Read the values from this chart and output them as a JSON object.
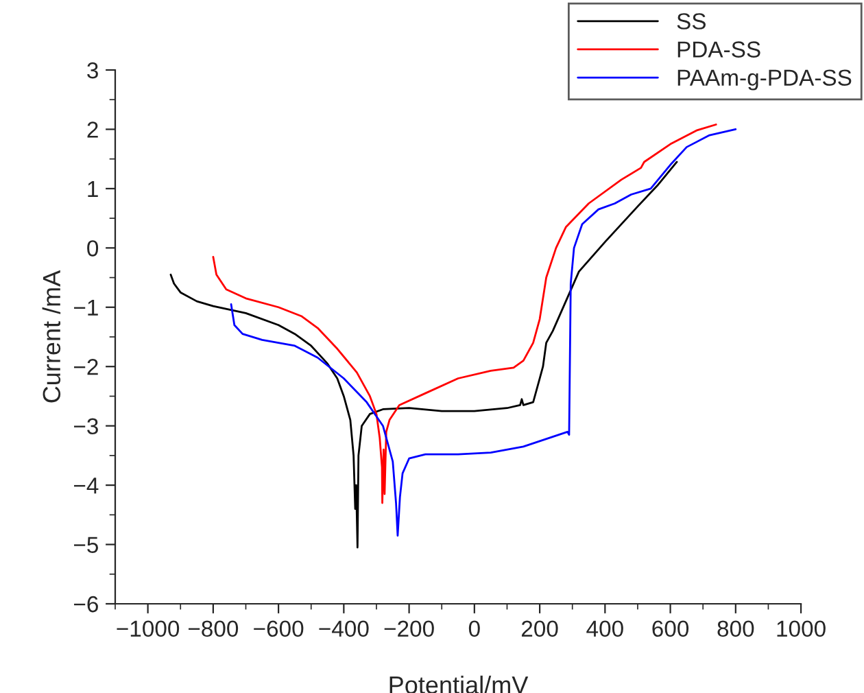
{
  "chart_data": {
    "type": "line",
    "xlabel": "Potential/mV",
    "ylabel": "Current /mA",
    "xlim": [
      -1100,
      1000
    ],
    "xticks": [
      {
        "value": -1000,
        "label": "−1000"
      },
      {
        "value": -800,
        "label": "−800"
      },
      {
        "value": -600,
        "label": "−600"
      },
      {
        "value": -400,
        "label": "−400"
      },
      {
        "value": -200,
        "label": "−200"
      },
      0,
      200,
      400,
      600,
      800,
      1000
    ],
    "ylim": [
      -6,
      3
    ],
    "yticks": [
      {
        "value": -6,
        "label": "−6"
      },
      {
        "value": -5,
        "label": "−5"
      },
      {
        "value": -4,
        "label": "−4"
      },
      {
        "value": -3,
        "label": "−3"
      },
      {
        "value": -2,
        "label": "−2"
      },
      {
        "value": -1,
        "label": "−1"
      },
      0,
      1,
      2,
      3
    ],
    "grid": false,
    "legend": "top right",
    "marker": "none",
    "line_style": "solid",
    "series": [
      {
        "name": "SS",
        "color": "#000000",
        "x": [
          -930,
          -920,
          -900,
          -850,
          -800,
          -700,
          -600,
          -550,
          -500,
          -450,
          -420,
          -400,
          -380,
          -370,
          -365,
          -362,
          -358,
          -355,
          -345,
          -320,
          -280,
          -200,
          -100,
          0,
          100,
          140,
          145,
          150,
          180,
          190,
          200,
          210,
          220,
          240,
          280,
          320,
          400,
          500,
          560,
          620
        ],
        "values": [
          -0.45,
          -0.6,
          -0.75,
          -0.9,
          -0.98,
          -1.1,
          -1.3,
          -1.45,
          -1.65,
          -1.95,
          -2.2,
          -2.5,
          -2.9,
          -3.5,
          -4.4,
          -4.0,
          -5.05,
          -3.5,
          -3.0,
          -2.8,
          -2.72,
          -2.7,
          -2.75,
          -2.75,
          -2.7,
          -2.65,
          -2.55,
          -2.65,
          -2.6,
          -2.4,
          -2.2,
          -2.0,
          -1.6,
          -1.4,
          -0.9,
          -0.4,
          0.1,
          0.7,
          1.05,
          1.45
        ]
      },
      {
        "name": "PDA-SS",
        "color": "#ff0000",
        "x": [
          -800,
          -790,
          -760,
          -700,
          -600,
          -530,
          -480,
          -420,
          -360,
          -320,
          -300,
          -290,
          -283,
          -282,
          -278,
          -275,
          -270,
          -260,
          -230,
          -150,
          -50,
          50,
          120,
          150,
          180,
          200,
          220,
          250,
          280,
          350,
          450,
          510,
          520,
          600,
          680,
          740
        ],
        "values": [
          -0.15,
          -0.45,
          -0.7,
          -0.85,
          -1.0,
          -1.15,
          -1.35,
          -1.7,
          -2.1,
          -2.5,
          -2.8,
          -3.2,
          -3.7,
          -4.3,
          -3.4,
          -4.15,
          -3.1,
          -2.9,
          -2.65,
          -2.45,
          -2.2,
          -2.07,
          -2.02,
          -1.9,
          -1.6,
          -1.2,
          -0.5,
          0.0,
          0.35,
          0.75,
          1.15,
          1.35,
          1.45,
          1.75,
          1.98,
          2.08
        ]
      },
      {
        "name": "PAAm-g-PDA-SS",
        "color": "#0000ff",
        "x": [
          -745,
          -735,
          -710,
          -650,
          -550,
          -480,
          -400,
          -330,
          -280,
          -250,
          -240,
          -235,
          -228,
          -220,
          -200,
          -150,
          -50,
          50,
          150,
          285,
          290,
          295,
          305,
          330,
          380,
          430,
          480,
          540,
          600,
          650,
          720,
          800
        ],
        "values": [
          -0.95,
          -1.3,
          -1.45,
          -1.55,
          -1.65,
          -1.85,
          -2.2,
          -2.6,
          -3.0,
          -3.6,
          -4.3,
          -4.85,
          -4.2,
          -3.8,
          -3.55,
          -3.48,
          -3.48,
          -3.45,
          -3.35,
          -3.1,
          -3.15,
          -0.6,
          0.0,
          0.4,
          0.65,
          0.75,
          0.9,
          1.0,
          1.4,
          1.7,
          1.9,
          2.0
        ]
      }
    ]
  }
}
